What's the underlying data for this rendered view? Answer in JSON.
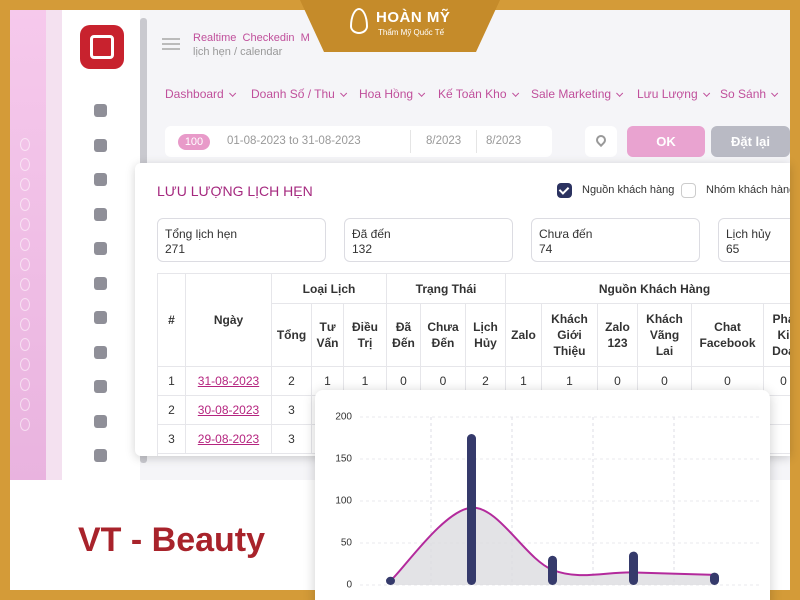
{
  "brand_badge": {
    "name": "HOÀN MỸ",
    "tagline": "Thẩm Mỹ Quốc Tế"
  },
  "header": {
    "tabs": [
      "Realtime",
      "Checkedin",
      "M"
    ],
    "breadcrumb": "lịch hẹn / calendar"
  },
  "nav": [
    "Dashboard",
    "Doanh Số / Thu",
    "Hoa Hồng",
    "Kế Toán Kho",
    "Sale Marketing",
    "Lưu Lượng",
    "So Sánh"
  ],
  "filter": {
    "count": "100",
    "date_range": "01-08-2023 to 31-08-2023",
    "month_from": "8/2023",
    "month_to": "8/2023",
    "ok": "OK",
    "reset": "Đặt lại"
  },
  "panel": {
    "title": "LƯU LƯỢNG LỊCH HẸN",
    "options": [
      {
        "label": "Nguồn khách hàng",
        "checked": true
      },
      {
        "label": "Nhóm khách hàng",
        "checked": false
      }
    ],
    "stats": [
      {
        "label": "Tổng lịch hẹn",
        "value": 271
      },
      {
        "label": "Đã đến",
        "value": 132
      },
      {
        "label": "Chưa đến",
        "value": 74
      },
      {
        "label": "Lịch hủy",
        "value": 65
      }
    ],
    "table": {
      "row_header": [
        "#",
        "Ngày"
      ],
      "groups": [
        {
          "label": "Loại Lịch",
          "columns": [
            "Tổng",
            "Tư Vấn",
            "Điều Trị"
          ]
        },
        {
          "label": "Trạng Thái",
          "columns": [
            "Đã Đến",
            "Chưa Đến",
            "Lịch Hủy"
          ]
        },
        {
          "label": "Nguồn Khách Hàng",
          "columns": [
            "Zalo",
            "Khách Giới Thiệu",
            "Zalo 123",
            "Khách Vãng Lai",
            "Chat Facebook",
            "Phả Ki Doa"
          ]
        }
      ],
      "rows": [
        [
          1,
          "31-08-2023",
          2,
          1,
          1,
          0,
          0,
          2,
          1,
          1,
          0,
          0,
          0,
          0
        ],
        [
          2,
          "30-08-2023",
          3
        ],
        [
          3,
          "29-08-2023",
          3
        ]
      ]
    }
  },
  "footer_brand": "VT - Beauty",
  "chart_data": {
    "type": "bar",
    "categories": [
      null,
      null,
      null,
      null,
      null
    ],
    "series": [
      {
        "type": "bar",
        "color": "#353a6b",
        "values": [
          5,
          175,
          30,
          35,
          10
        ]
      },
      {
        "type": "line",
        "color": "#b32a9c",
        "values": [
          5,
          92,
          18,
          15,
          12
        ]
      }
    ],
    "ylim": [
      0,
      200
    ],
    "yticks": [
      0,
      50,
      100,
      150,
      200
    ],
    "grid": true
  }
}
